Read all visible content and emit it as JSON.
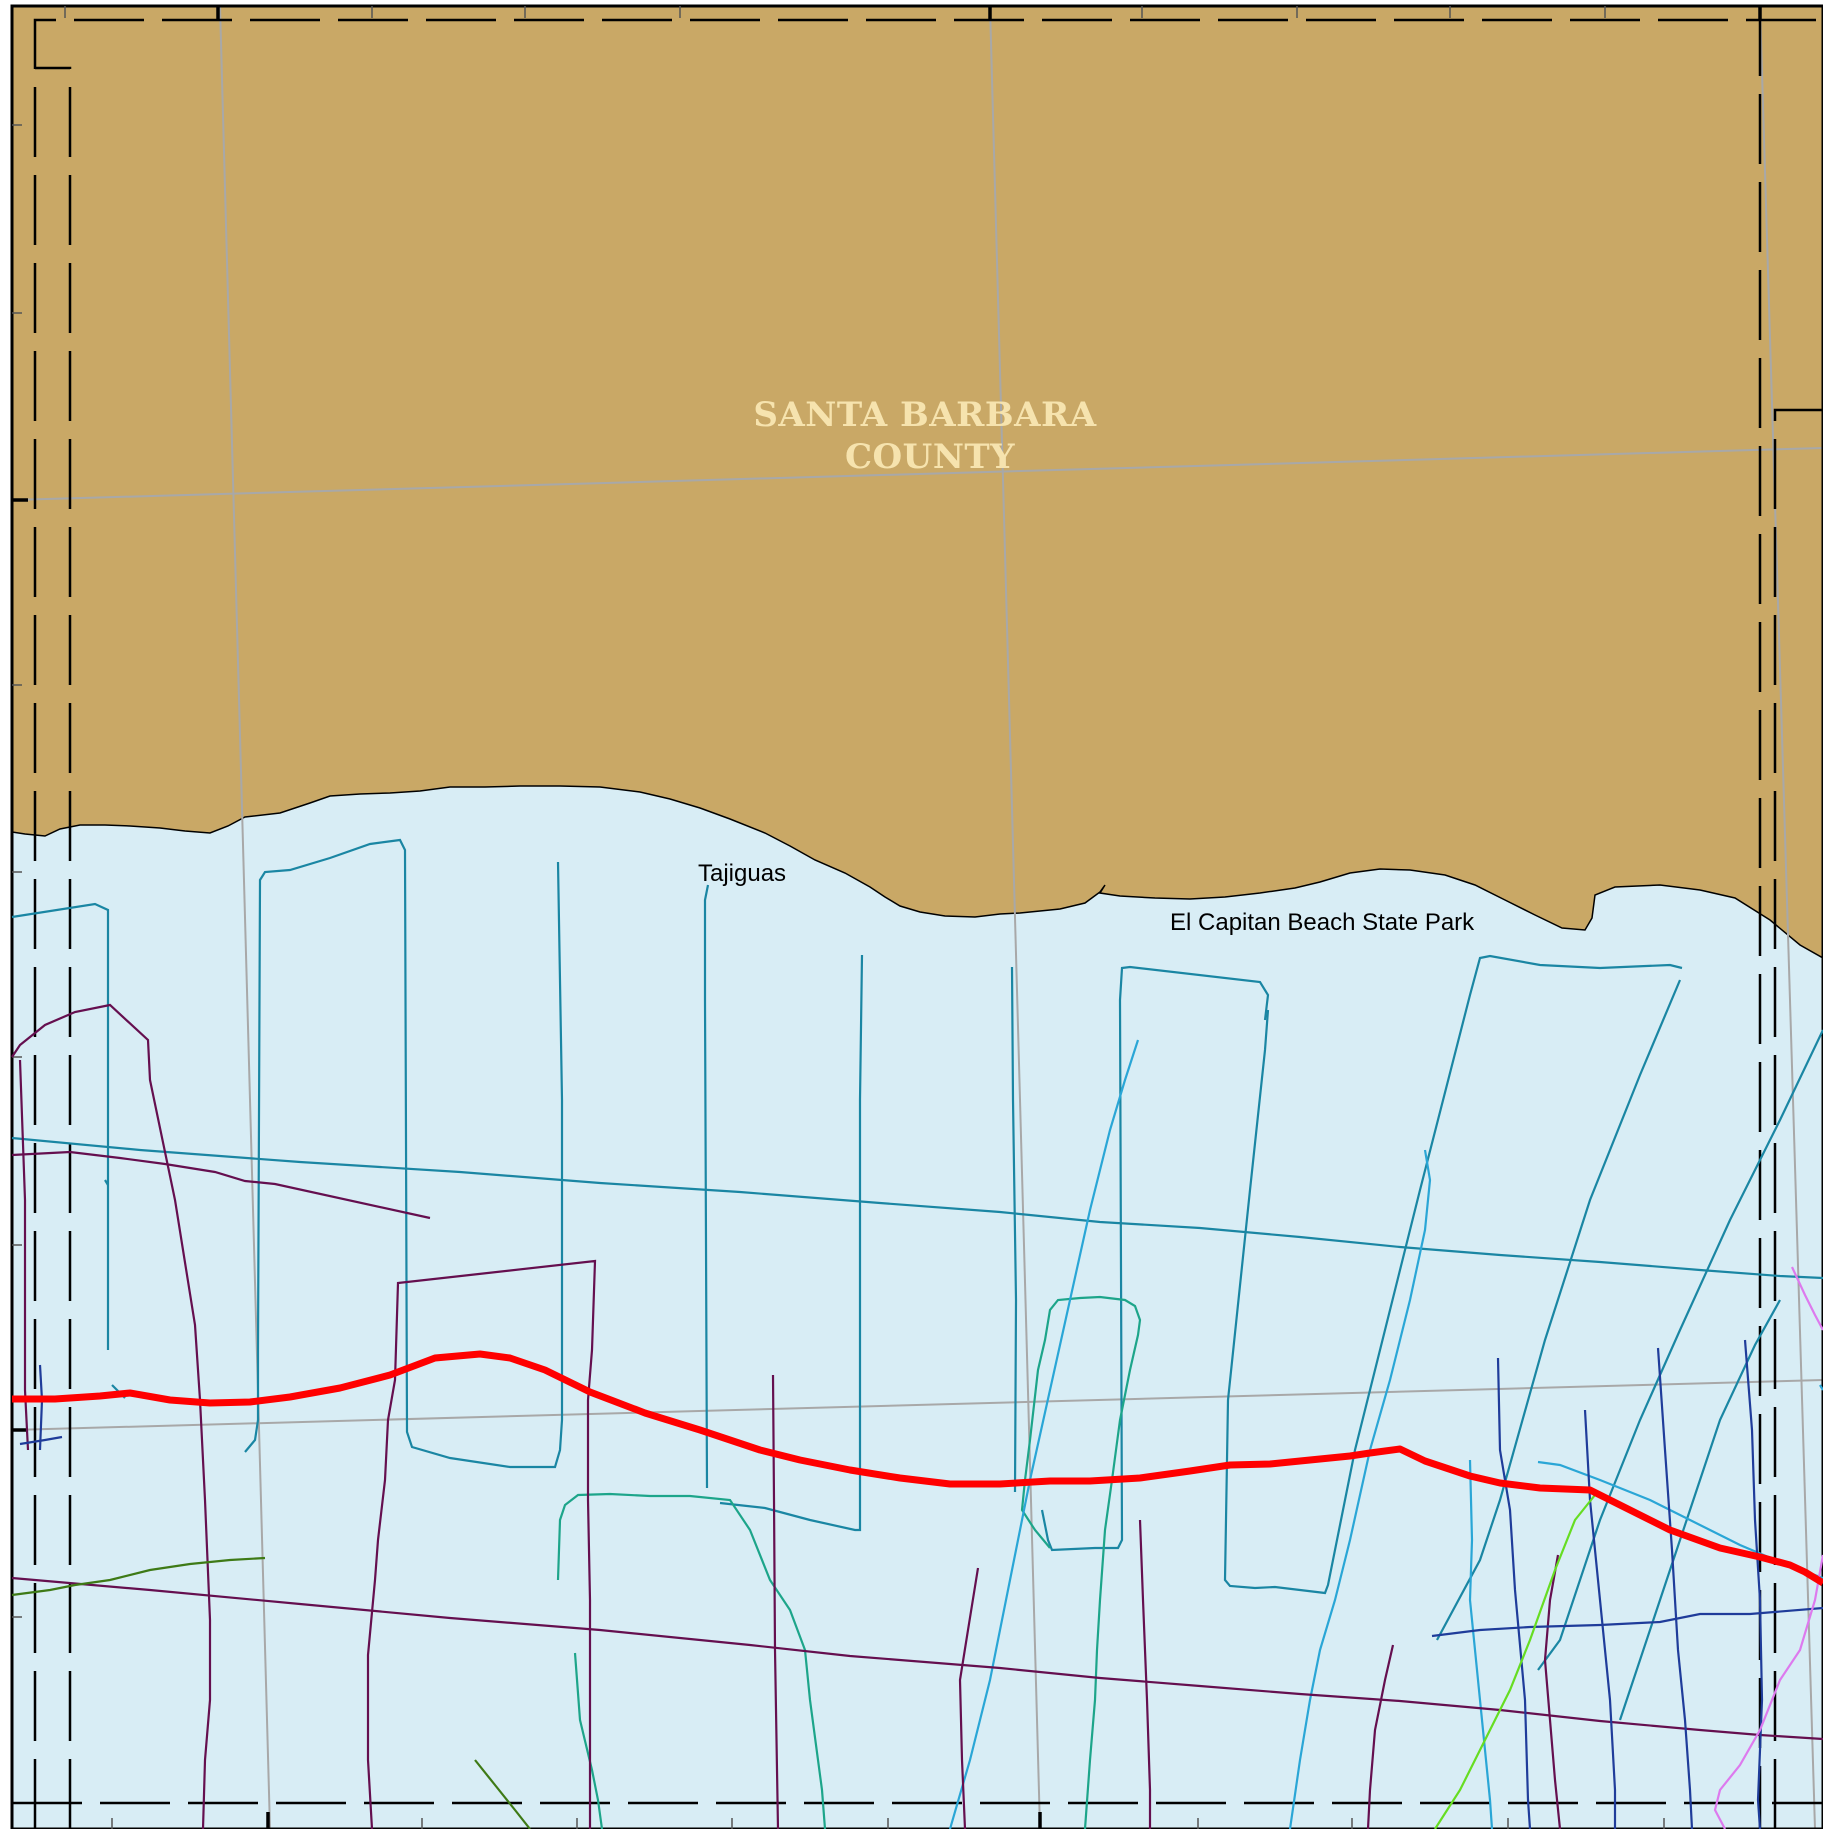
{
  "map": {
    "county_label_line1": "SANTA BARBARA",
    "county_label_line2": "COUNTY",
    "places": {
      "tajiguas": "Tajiguas",
      "el_capitan": "El Capitan Beach State Park"
    }
  },
  "colors": {
    "land": "#C9A866",
    "water": "#D8EDF5",
    "coastline": "#000000",
    "county_label": "#F6E3AE",
    "graticule": "#A8A8A8",
    "frame": "#000000",
    "boundary_line": "#FF0000",
    "track_teal": "#1A86A3",
    "track_sea_green": "#1DA58A",
    "track_sky": "#2AA6D6",
    "track_purple": "#650F4F",
    "track_navy": "#1F3C9A",
    "track_dark_green": "#3E7A16",
    "track_lime": "#66DD22",
    "track_violet": "#DD7AEE"
  }
}
